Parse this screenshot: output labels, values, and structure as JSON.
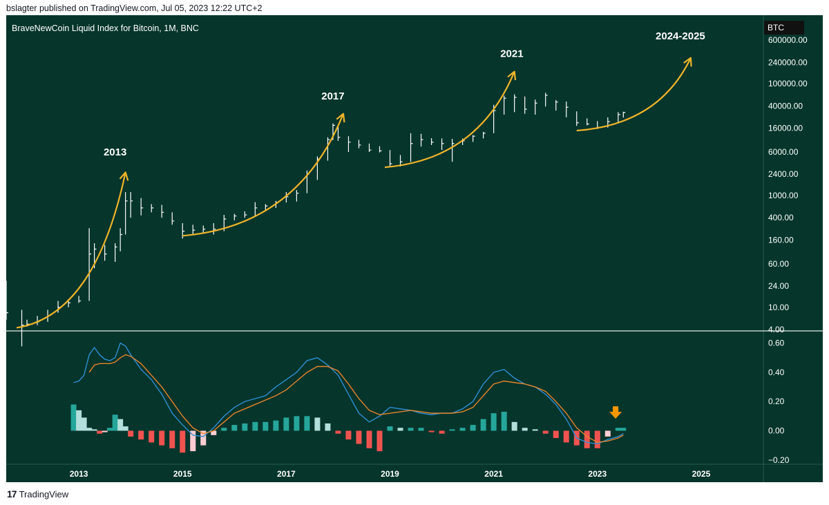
{
  "header": {
    "publisher_line": "bslagter published on TradingView.com, Jul 05, 2023 12:22 UTC+2"
  },
  "footer": {
    "brand_mark": "17",
    "brand_name": "TradingView"
  },
  "colors": {
    "background": "#05352b",
    "candle": "#ffffff",
    "arc": "#f0b429",
    "macd_line": "#2f8fd6",
    "signal_line": "#e8832a",
    "hist_up_strong": "#26a69a",
    "hist_up_weak": "#b2dfdb",
    "hist_down_strong": "#ef5350",
    "hist_down_weak": "#ffcdd2",
    "down_arrow": "#ff9800"
  },
  "chart_data": [
    {
      "type": "line",
      "title": "BraveNewCoin Liquid Index for Bitcoin, 1M, BNC",
      "symbol_badge": "BTC",
      "y_scale": "log",
      "ylim": [
        4,
        1500000
      ],
      "y_ticks": [
        "600000.00",
        "240000.00",
        "100000.00",
        "40000.00",
        "16000.00",
        "6000.00",
        "2400.00",
        "1000.00",
        "400.00",
        "160.00",
        "60.00",
        "24.00",
        "10.00",
        "4.00"
      ],
      "y_tick_values": [
        600000,
        240000,
        100000,
        40000,
        16000,
        6000,
        2400,
        1000,
        400,
        160,
        60,
        24,
        10,
        4
      ],
      "x_ticks": [
        "2013",
        "2015",
        "2017",
        "2019",
        "2021",
        "2023",
        "2025"
      ],
      "xlim": [
        2011.6,
        2026.2
      ],
      "annotations": [
        {
          "label": "2013",
          "arc_from": [
            2011.8,
            4.3
          ],
          "arc_to": [
            2013.9,
            2600
          ],
          "label_at": [
            2013.7,
            5200
          ]
        },
        {
          "label": "2017",
          "arc_from": [
            2015.0,
            190
          ],
          "arc_to": [
            2018.1,
            29000
          ],
          "label_at": [
            2017.9,
            52000
          ]
        },
        {
          "label": "2021",
          "arc_from": [
            2018.9,
            3200
          ],
          "arc_to": [
            2021.4,
            165000
          ],
          "label_at": [
            2021.35,
            300000
          ]
        },
        {
          "label": "2024-2025",
          "arc_from": [
            2022.6,
            14500
          ],
          "arc_to": [
            2024.8,
            290000
          ],
          "label_at": [
            2024.6,
            620000
          ]
        }
      ],
      "price_series": {
        "x": [
          2011.6,
          2011.9,
          2012.0,
          2012.2,
          2012.4,
          2012.6,
          2012.8,
          2013.0,
          2013.2,
          2013.3,
          2013.5,
          2013.7,
          2013.8,
          2013.9,
          2014.0,
          2014.2,
          2014.4,
          2014.6,
          2014.8,
          2015.0,
          2015.2,
          2015.4,
          2015.6,
          2015.8,
          2016.0,
          2016.2,
          2016.4,
          2016.6,
          2016.8,
          2017.0,
          2017.2,
          2017.4,
          2017.6,
          2017.8,
          2017.9,
          2018.0,
          2018.2,
          2018.4,
          2018.6,
          2018.8,
          2019.0,
          2019.2,
          2019.4,
          2019.6,
          2019.8,
          2020.0,
          2020.2,
          2020.4,
          2020.6,
          2020.8,
          2021.0,
          2021.2,
          2021.4,
          2021.6,
          2021.8,
          2022.0,
          2022.2,
          2022.4,
          2022.6,
          2022.8,
          2023.0,
          2023.2,
          2023.4,
          2023.5
        ],
        "close": [
          8,
          4.8,
          5,
          5.5,
          7,
          10,
          12,
          13,
          90,
          110,
          90,
          120,
          200,
          800,
          800,
          600,
          600,
          500,
          350,
          230,
          240,
          250,
          250,
          380,
          430,
          450,
          600,
          650,
          750,
          950,
          1100,
          2400,
          4500,
          10000,
          18000,
          11000,
          9000,
          8000,
          6500,
          6300,
          3700,
          4000,
          8500,
          10000,
          9000,
          8500,
          8500,
          9500,
          11500,
          13000,
          33000,
          55000,
          57000,
          35000,
          45000,
          62000,
          47000,
          38000,
          20000,
          19000,
          16500,
          21000,
          28000,
          30500
        ],
        "high": [
          30,
          9,
          6,
          7,
          9,
          13,
          14,
          16,
          260,
          140,
          130,
          140,
          260,
          1150,
          1150,
          900,
          700,
          680,
          500,
          320,
          300,
          290,
          320,
          450,
          470,
          520,
          760,
          700,
          800,
          1150,
          1250,
          2800,
          5000,
          11000,
          19500,
          17000,
          11500,
          9900,
          8500,
          7600,
          6500,
          5300,
          13000,
          12700,
          10600,
          10500,
          10300,
          10500,
          12000,
          13800,
          41900,
          61000,
          64500,
          59000,
          52000,
          68800,
          51000,
          48000,
          32000,
          24000,
          21400,
          25000,
          31000,
          31500
        ],
        "low": [
          6,
          2,
          4.5,
          4.8,
          5.5,
          8,
          10,
          12,
          13,
          50,
          68,
          65,
          100,
          200,
          400,
          440,
          500,
          400,
          300,
          170,
          200,
          210,
          200,
          230,
          360,
          400,
          430,
          550,
          600,
          750,
          780,
          1100,
          1900,
          4200,
          9800,
          9500,
          6000,
          7000,
          6000,
          5900,
          3200,
          3300,
          4000,
          7500,
          8000,
          6500,
          4000,
          8000,
          9100,
          10500,
          13000,
          28000,
          31000,
          29000,
          28000,
          39000,
          33000,
          25000,
          17600,
          18000,
          15500,
          16400,
          19600,
          24800
        ]
      }
    },
    {
      "type": "bar",
      "title": "",
      "ylim": [
        -0.22,
        0.66
      ],
      "y_ticks": [
        "0.60",
        "0.40",
        "0.20",
        "0.00",
        "−0.20"
      ],
      "y_tick_values": [
        0.6,
        0.4,
        0.2,
        0.0,
        -0.2
      ],
      "x": [
        2012.9,
        2013.0,
        2013.1,
        2013.2,
        2013.3,
        2013.4,
        2013.5,
        2013.6,
        2013.7,
        2013.8,
        2013.9,
        2014.0,
        2014.2,
        2014.4,
        2014.6,
        2014.8,
        2015.0,
        2015.2,
        2015.4,
        2015.6,
        2015.8,
        2016.0,
        2016.2,
        2016.4,
        2016.6,
        2016.8,
        2017.0,
        2017.2,
        2017.4,
        2017.6,
        2017.8,
        2018.0,
        2018.2,
        2018.4,
        2018.6,
        2018.8,
        2019.0,
        2019.2,
        2019.4,
        2019.6,
        2019.8,
        2020.0,
        2020.2,
        2020.4,
        2020.6,
        2020.8,
        2021.0,
        2021.2,
        2021.4,
        2021.6,
        2021.8,
        2022.0,
        2022.2,
        2022.4,
        2022.6,
        2022.8,
        2023.0,
        2023.2,
        2023.4,
        2023.5
      ],
      "series": [
        {
          "name": "",
          "kind": "line",
          "color_key": "macd_line",
          "values": [
            0.33,
            0.34,
            0.38,
            0.52,
            0.57,
            0.52,
            0.49,
            0.48,
            0.5,
            0.6,
            0.58,
            0.52,
            0.42,
            0.35,
            0.25,
            0.12,
            0.04,
            -0.03,
            -0.04,
            0.02,
            0.1,
            0.16,
            0.2,
            0.22,
            0.24,
            0.3,
            0.35,
            0.4,
            0.48,
            0.5,
            0.45,
            0.38,
            0.25,
            0.12,
            0.06,
            0.1,
            0.16,
            0.15,
            0.14,
            0.12,
            0.11,
            0.12,
            0.12,
            0.15,
            0.2,
            0.32,
            0.4,
            0.42,
            0.36,
            0.32,
            0.3,
            0.25,
            0.18,
            0.08,
            -0.05,
            -0.08,
            -0.09,
            -0.06,
            -0.04,
            -0.02
          ]
        },
        {
          "name": "",
          "kind": "line",
          "color_key": "signal_line",
          "values": [
            null,
            null,
            null,
            0.4,
            0.45,
            0.46,
            0.46,
            0.46,
            0.47,
            0.5,
            0.52,
            0.51,
            0.46,
            0.38,
            0.3,
            0.2,
            0.1,
            0.02,
            -0.02,
            0.0,
            0.06,
            0.12,
            0.15,
            0.18,
            0.21,
            0.24,
            0.28,
            0.34,
            0.4,
            0.44,
            0.44,
            0.41,
            0.32,
            0.22,
            0.14,
            0.11,
            0.12,
            0.13,
            0.14,
            0.13,
            0.12,
            0.12,
            0.12,
            0.13,
            0.16,
            0.24,
            0.32,
            0.34,
            0.33,
            0.32,
            0.3,
            0.27,
            0.2,
            0.12,
            0.02,
            -0.04,
            -0.08,
            -0.07,
            -0.05,
            -0.03
          ]
        },
        {
          "name": "",
          "kind": "histogram",
          "values": [
            0.18,
            0.14,
            0.09,
            0.02,
            0.01,
            -0.02,
            -0.01,
            0.02,
            0.11,
            0.08,
            0.03,
            -0.04,
            -0.06,
            -0.08,
            -0.1,
            -0.12,
            -0.15,
            -0.14,
            -0.1,
            -0.03,
            0.02,
            0.04,
            0.05,
            0.06,
            0.06,
            0.07,
            0.09,
            0.1,
            0.1,
            0.09,
            0.05,
            -0.02,
            -0.06,
            -0.09,
            -0.12,
            -0.14,
            0.03,
            0.02,
            0.02,
            0.02,
            -0.01,
            -0.02,
            0.01,
            0.02,
            0.04,
            0.08,
            0.12,
            0.13,
            0.06,
            0.02,
            0.01,
            -0.02,
            -0.05,
            -0.08,
            -0.1,
            -0.12,
            -0.12,
            -0.04,
            0.02,
            0.02
          ]
        }
      ],
      "annotations": [
        {
          "type": "down-arrow",
          "x": 2023.35,
          "y": 0.12
        }
      ]
    }
  ]
}
